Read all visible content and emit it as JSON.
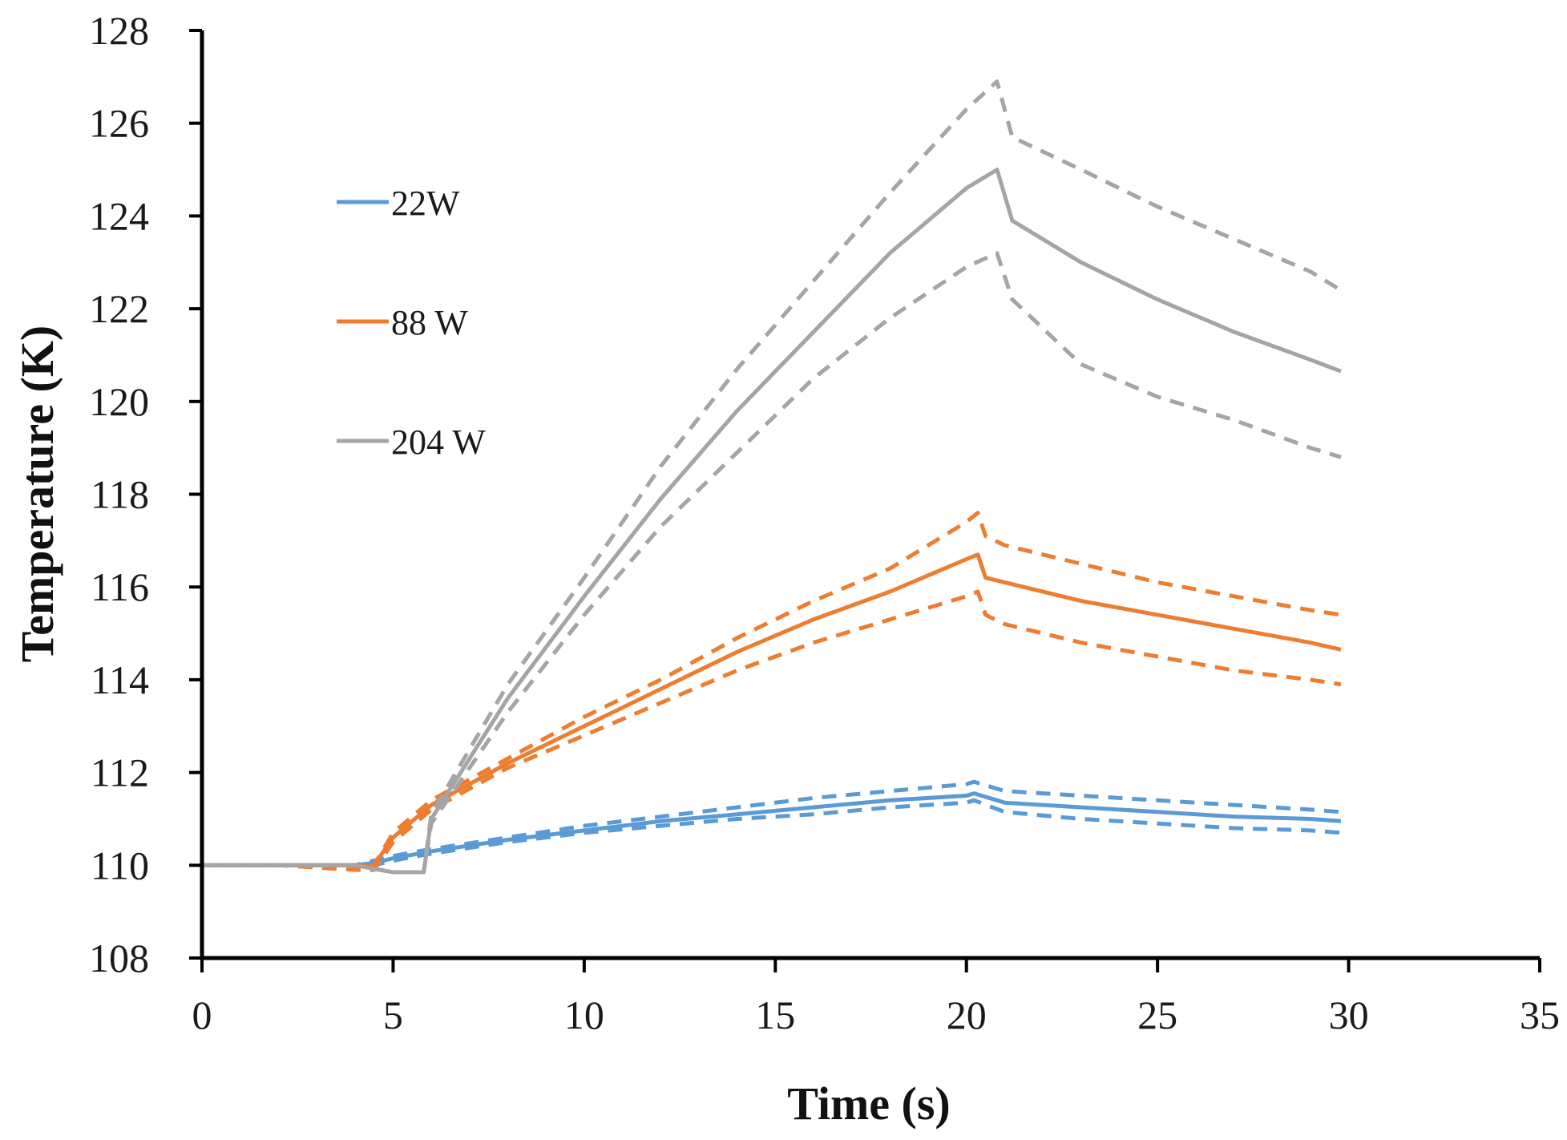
{
  "chart_data": {
    "type": "line",
    "title": "",
    "xlabel": "Time (s)",
    "ylabel": "Temperature (K)",
    "xlim": [
      0,
      35
    ],
    "ylim": [
      108,
      128
    ],
    "xticks": [
      0,
      5,
      10,
      15,
      20,
      25,
      30,
      35
    ],
    "yticks": [
      108,
      110,
      112,
      114,
      116,
      118,
      120,
      122,
      124,
      126,
      128
    ],
    "grid": false,
    "legend_position": "upper-left",
    "series": [
      {
        "name": "22W",
        "color": "#5b9bd5",
        "style": "solid",
        "x": [
          0,
          2,
          4,
          4.5,
          5,
          6,
          8,
          10,
          12,
          14,
          16,
          18,
          20,
          20.2,
          21,
          23,
          25,
          27,
          29,
          29.8
        ],
        "y": [
          110.0,
          110.0,
          110.0,
          110.05,
          110.15,
          110.3,
          110.55,
          110.75,
          110.95,
          111.1,
          111.25,
          111.4,
          111.5,
          111.55,
          111.35,
          111.25,
          111.15,
          111.05,
          111.0,
          110.95
        ]
      },
      {
        "name": "",
        "color": "#5b9bd5",
        "style": "dashed",
        "x": [
          0,
          2,
          4,
          4.5,
          5,
          6,
          8,
          10,
          12,
          14,
          16,
          18,
          20,
          20.2,
          21,
          23,
          25,
          27,
          29,
          29.8
        ],
        "y": [
          110.0,
          110.0,
          110.0,
          110.1,
          110.2,
          110.35,
          110.6,
          110.85,
          111.05,
          111.25,
          111.45,
          111.6,
          111.75,
          111.8,
          111.6,
          111.5,
          111.4,
          111.3,
          111.2,
          111.15
        ]
      },
      {
        "name": "",
        "color": "#5b9bd5",
        "style": "dashed",
        "x": [
          0,
          2,
          4,
          4.5,
          5,
          6,
          8,
          10,
          12,
          14,
          16,
          18,
          20,
          20.2,
          21,
          23,
          25,
          27,
          29,
          29.8
        ],
        "y": [
          110.0,
          110.0,
          109.95,
          110.0,
          110.1,
          110.25,
          110.5,
          110.7,
          110.85,
          111.0,
          111.1,
          111.25,
          111.35,
          111.4,
          111.15,
          111.0,
          110.9,
          110.8,
          110.75,
          110.7
        ]
      },
      {
        "name": "88 W",
        "color": "#ed7d31",
        "style": "solid",
        "x": [
          0,
          2,
          4,
          4.5,
          5,
          6,
          8,
          10,
          12,
          14,
          16,
          18,
          20,
          20.3,
          20.5,
          21,
          23,
          25,
          27,
          29,
          29.8
        ],
        "y": [
          110.0,
          110.0,
          110.0,
          110.0,
          110.6,
          111.3,
          112.2,
          113.0,
          113.8,
          114.6,
          115.3,
          115.9,
          116.6,
          116.7,
          116.2,
          116.1,
          115.7,
          115.4,
          115.1,
          114.8,
          114.65
        ]
      },
      {
        "name": "",
        "color": "#ed7d31",
        "style": "dashed",
        "x": [
          0,
          2,
          4,
          4.5,
          5,
          6,
          8,
          10,
          12,
          14,
          16,
          18,
          20,
          20.3,
          20.5,
          21,
          23,
          25,
          27,
          29,
          29.8
        ],
        "y": [
          110.0,
          110.0,
          110.0,
          110.0,
          110.7,
          111.4,
          112.3,
          113.2,
          114.0,
          114.9,
          115.7,
          116.4,
          117.4,
          117.6,
          117.1,
          116.9,
          116.5,
          116.1,
          115.8,
          115.5,
          115.4
        ]
      },
      {
        "name": "",
        "color": "#ed7d31",
        "style": "dashed",
        "x": [
          0,
          2,
          4,
          4.5,
          5,
          6,
          8,
          10,
          12,
          14,
          16,
          18,
          20,
          20.3,
          20.5,
          21,
          23,
          25,
          27,
          29,
          29.8
        ],
        "y": [
          110.0,
          110.0,
          109.9,
          109.9,
          110.5,
          111.2,
          112.1,
          112.8,
          113.5,
          114.2,
          114.8,
          115.3,
          115.8,
          115.9,
          115.4,
          115.2,
          114.8,
          114.5,
          114.2,
          114.0,
          113.9
        ]
      },
      {
        "name": "204 W",
        "color": "#a5a5a5",
        "style": "solid",
        "x": [
          0,
          2,
          4,
          5,
          5.8,
          6,
          7,
          8,
          10,
          12,
          14,
          16,
          18,
          20,
          20.8,
          21.2,
          23,
          25,
          27,
          29,
          29.8
        ],
        "y": [
          110.0,
          110.0,
          110.0,
          109.85,
          109.85,
          111.0,
          112.3,
          113.6,
          115.8,
          117.9,
          119.8,
          121.5,
          123.2,
          124.6,
          125.0,
          123.9,
          123.0,
          122.2,
          121.5,
          120.9,
          120.65
        ]
      },
      {
        "name": "",
        "color": "#a5a5a5",
        "style": "dashed",
        "x": [
          0,
          2,
          4,
          5,
          5.8,
          6,
          7,
          8,
          10,
          12,
          14,
          16,
          18,
          20,
          20.8,
          21.2,
          23,
          25,
          27,
          29,
          29.8
        ],
        "y": [
          110.0,
          110.0,
          110.0,
          109.85,
          109.85,
          111.1,
          112.5,
          113.9,
          116.2,
          118.6,
          120.7,
          122.6,
          124.5,
          126.3,
          126.9,
          125.7,
          125.0,
          124.2,
          123.5,
          122.8,
          122.4
        ]
      },
      {
        "name": "",
        "color": "#a5a5a5",
        "style": "dashed",
        "x": [
          0,
          2,
          4,
          5,
          5.8,
          6,
          7,
          8,
          10,
          12,
          14,
          16,
          18,
          20,
          20.8,
          21.2,
          23,
          25,
          27,
          29,
          29.8
        ],
        "y": [
          110.0,
          110.0,
          110.0,
          109.85,
          109.85,
          110.9,
          112.1,
          113.3,
          115.4,
          117.3,
          118.9,
          120.5,
          121.8,
          122.9,
          123.2,
          122.2,
          120.8,
          120.1,
          119.6,
          119.0,
          118.8
        ]
      }
    ]
  }
}
